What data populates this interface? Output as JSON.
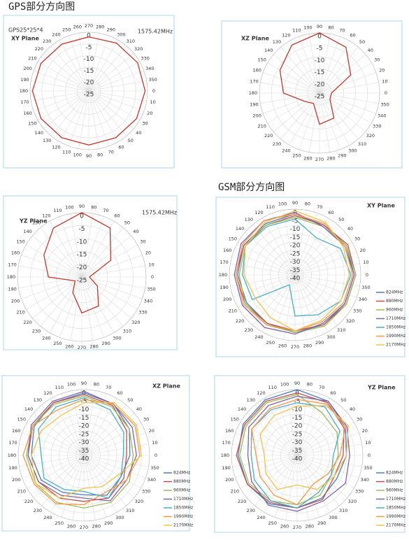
{
  "headings": [
    "GPS部分方向图",
    "GSM部分方向图"
  ],
  "chart_data": [
    {
      "type": "polar",
      "title": "GPS25*25*4",
      "plane": "XY Plane",
      "frequency": "1575.42MHz",
      "angle_labels": [
        270,
        280,
        290,
        300,
        310,
        320,
        330,
        340,
        350,
        0,
        10,
        20,
        30,
        40,
        50,
        60,
        70,
        80,
        90,
        100,
        110,
        120,
        130,
        140,
        150,
        160,
        170,
        180,
        190,
        200,
        210,
        220,
        230,
        240,
        250,
        260
      ],
      "rlim": [
        -25,
        0
      ],
      "rticks": [
        0,
        -5,
        -10,
        -15,
        -20,
        -25
      ],
      "theta": [
        270,
        300,
        330,
        0,
        30,
        60,
        90,
        120,
        150,
        180,
        210,
        240
      ],
      "series": [
        {
          "color": "#c0392b",
          "values": [
            -2,
            -1.5,
            -1,
            -1,
            -1.5,
            -2,
            -2,
            -2,
            -1.5,
            -1,
            -1.5,
            -2
          ]
        }
      ]
    },
    {
      "type": "polar",
      "plane": "XZ Plane",
      "angle_labels": [
        90,
        80,
        70,
        60,
        50,
        40,
        30,
        20,
        10,
        0,
        350,
        340,
        330,
        320,
        310,
        300,
        290,
        280,
        270,
        260,
        250,
        240,
        230,
        220,
        210,
        200,
        190,
        180,
        170,
        160,
        150,
        140,
        130,
        120,
        110,
        100
      ],
      "rlim": [
        -25,
        0
      ],
      "rticks": [
        0,
        -5,
        -10,
        -15,
        -20,
        -25
      ],
      "theta": [
        90,
        60,
        30,
        0,
        330,
        300,
        270,
        240,
        210,
        180,
        150,
        120
      ],
      "series": [
        {
          "color": "#c0392b",
          "values": [
            0,
            -3,
            -10,
            -20,
            -20,
            -13,
            -12,
            -20,
            -18,
            -10,
            -6,
            -2
          ]
        }
      ]
    },
    {
      "type": "polar",
      "plane": "YZ Plane",
      "frequency": "1575.42MHz",
      "angle_labels": [
        90,
        80,
        70,
        60,
        50,
        40,
        30,
        20,
        10,
        0,
        350,
        340,
        330,
        320,
        310,
        300,
        290,
        280,
        270,
        260,
        250,
        240,
        230,
        220,
        210,
        200,
        190,
        180,
        170,
        160,
        150,
        140,
        130,
        120,
        110,
        100
      ],
      "rlim": [
        -25,
        0
      ],
      "rticks": [
        0,
        -5,
        -10,
        -15,
        -20,
        -25
      ],
      "theta": [
        90,
        60,
        30,
        0,
        330,
        300,
        270,
        240,
        210,
        180,
        150,
        120
      ],
      "series": [
        {
          "color": "#c0392b",
          "values": [
            0,
            -3,
            -12,
            -22,
            -18,
            -12,
            -11,
            -18,
            -22,
            -12,
            -8,
            -3
          ]
        }
      ]
    },
    {
      "type": "polar",
      "plane": "XY Plane",
      "angle_labels": [
        90,
        80,
        70,
        60,
        50,
        40,
        30,
        20,
        10,
        0,
        350,
        340,
        330,
        320,
        310,
        300,
        290,
        280,
        270,
        260,
        250,
        240,
        230,
        220,
        210,
        200,
        190,
        180,
        170,
        160,
        150,
        140,
        130,
        120,
        110,
        100
      ],
      "rlim": [
        -40,
        0
      ],
      "rticks": [
        0,
        -5,
        -10,
        -15,
        -20,
        -25,
        -30,
        -35,
        -40
      ],
      "theta": [
        90,
        60,
        30,
        0,
        330,
        300,
        270,
        240,
        210,
        180,
        150,
        120
      ],
      "series": [
        {
          "name": "824MHz",
          "color": "#4a7ebb",
          "values": [
            -3,
            -5,
            -4,
            -4,
            -5,
            -5,
            -5,
            -6,
            -6,
            -5,
            -4,
            -4
          ]
        },
        {
          "name": "880MHz",
          "color": "#c0504d",
          "values": [
            -4,
            -5,
            -3,
            -3,
            -4,
            -5,
            -6,
            -6,
            -5,
            -4,
            -4,
            -5
          ]
        },
        {
          "name": "960MHz",
          "color": "#9bbb59",
          "values": [
            -5,
            -6,
            -4,
            -3,
            -4,
            -4,
            -5,
            -5,
            -5,
            -6,
            -5,
            -5
          ]
        },
        {
          "name": "1710MHz",
          "color": "#8064a2",
          "values": [
            -2,
            -6,
            -5,
            -4,
            -5,
            -6,
            -4,
            -3,
            -3,
            -3,
            -2,
            -2
          ]
        },
        {
          "name": "1850MHz",
          "color": "#4bacc6",
          "values": [
            -6,
            -14,
            -8,
            -6,
            -8,
            -12,
            -15,
            -33,
            -10,
            -8,
            -5,
            -6
          ]
        },
        {
          "name": "1990MHz",
          "color": "#f79646",
          "values": [
            -3,
            -4,
            -5,
            -5,
            -6,
            -7,
            -6,
            -5,
            -4,
            -4,
            -3,
            -2
          ]
        },
        {
          "name": "2170MHz",
          "color": "#f2c14e",
          "values": [
            -1,
            -3,
            -6,
            -7,
            -8,
            -8,
            -6,
            -10,
            -12,
            -9,
            -5,
            -3
          ]
        }
      ]
    },
    {
      "type": "polar",
      "plane": "XZ Plane",
      "angle_labels": [
        90,
        80,
        70,
        60,
        50,
        40,
        30,
        20,
        10,
        0,
        350,
        340,
        330,
        320,
        310,
        300,
        290,
        280,
        270,
        260,
        250,
        240,
        230,
        220,
        210,
        200,
        190,
        180,
        170,
        160,
        150,
        140,
        130,
        120,
        110,
        100
      ],
      "rlim": [
        -40,
        0
      ],
      "rticks": [
        0,
        -5,
        -10,
        -15,
        -20,
        -25,
        -30,
        -35,
        -40
      ],
      "theta": [
        90,
        60,
        30,
        0,
        330,
        300,
        270,
        240,
        210,
        180,
        150,
        120
      ],
      "series": [
        {
          "name": "824MHz",
          "color": "#4a7ebb",
          "values": [
            -2,
            -4,
            -8,
            -12,
            -14,
            -12,
            -16,
            -14,
            -10,
            -8,
            -5,
            -3
          ]
        },
        {
          "name": "880MHz",
          "color": "#c0504d",
          "values": [
            -3,
            -5,
            -10,
            -14,
            -12,
            -10,
            -12,
            -10,
            -8,
            -6,
            -4,
            -3
          ]
        },
        {
          "name": "960MHz",
          "color": "#9bbb59",
          "values": [
            -4,
            -6,
            -8,
            -10,
            -8,
            -7,
            -8,
            -7,
            -6,
            -5,
            -4,
            -4
          ]
        },
        {
          "name": "1710MHz",
          "color": "#8064a2",
          "values": [
            -1,
            -4,
            -6,
            -8,
            -10,
            -8,
            -14,
            -12,
            -8,
            -6,
            -3,
            -2
          ]
        },
        {
          "name": "1850MHz",
          "color": "#4bacc6",
          "values": [
            -5,
            -8,
            -12,
            -16,
            -14,
            -10,
            -18,
            -16,
            -12,
            -14,
            -8,
            -6
          ]
        },
        {
          "name": "1990MHz",
          "color": "#f79646",
          "values": [
            -6,
            -4,
            -4,
            -6,
            -10,
            -14,
            -10,
            -6,
            -5,
            -3,
            -4,
            -8
          ]
        },
        {
          "name": "2170MHz",
          "color": "#f2c14e",
          "values": [
            -8,
            -3,
            -3,
            -5,
            -16,
            -18,
            -20,
            -10,
            -6,
            -8,
            -10,
            -12
          ]
        }
      ]
    },
    {
      "type": "polar",
      "plane": "YZ Plane",
      "angle_labels": [
        90,
        80,
        70,
        60,
        50,
        40,
        30,
        20,
        10,
        0,
        350,
        340,
        330,
        320,
        310,
        300,
        290,
        280,
        270,
        260,
        250,
        240,
        230,
        220,
        210,
        200,
        190,
        180,
        170,
        160,
        150,
        140,
        130,
        120,
        110,
        100
      ],
      "rlim": [
        -40,
        0
      ],
      "rticks": [
        0,
        -5,
        -10,
        -15,
        -20,
        -25,
        -30,
        -35,
        -40
      ],
      "theta": [
        90,
        60,
        30,
        0,
        330,
        300,
        270,
        240,
        210,
        180,
        150,
        120
      ],
      "series": [
        {
          "name": "824MHz",
          "color": "#4a7ebb",
          "values": [
            0,
            -2,
            -6,
            -10,
            -12,
            -10,
            -8,
            -6,
            -5,
            -4,
            -2,
            -1
          ]
        },
        {
          "name": "880MHz",
          "color": "#c0504d",
          "values": [
            -2,
            -3,
            -7,
            -12,
            -14,
            -9,
            -8,
            -7,
            -5,
            -3,
            -3,
            -2
          ]
        },
        {
          "name": "960MHz",
          "color": "#9bbb59",
          "values": [
            -3,
            -10,
            -12,
            -15,
            -16,
            -12,
            -10,
            -8,
            -6,
            -5,
            -4,
            -3
          ]
        },
        {
          "name": "1710MHz",
          "color": "#8064a2",
          "values": [
            -4,
            -2,
            -5,
            -8,
            -6,
            -8,
            -6,
            -5,
            -8,
            -10,
            -6,
            -5
          ]
        },
        {
          "name": "1850MHz",
          "color": "#4bacc6",
          "values": [
            -8,
            -6,
            -10,
            -18,
            -16,
            -14,
            -8,
            -8,
            -10,
            -12,
            -8,
            -8
          ]
        },
        {
          "name": "1990MHz",
          "color": "#f79646",
          "values": [
            -6,
            -4,
            -6,
            -14,
            -18,
            -20,
            -10,
            -12,
            -14,
            -15,
            -8,
            -7
          ]
        },
        {
          "name": "2170MHz",
          "color": "#f2c14e",
          "values": [
            -10,
            -5,
            -4,
            -10,
            -14,
            -16,
            -22,
            -16,
            -18,
            -20,
            -14,
            -12
          ]
        }
      ]
    }
  ]
}
